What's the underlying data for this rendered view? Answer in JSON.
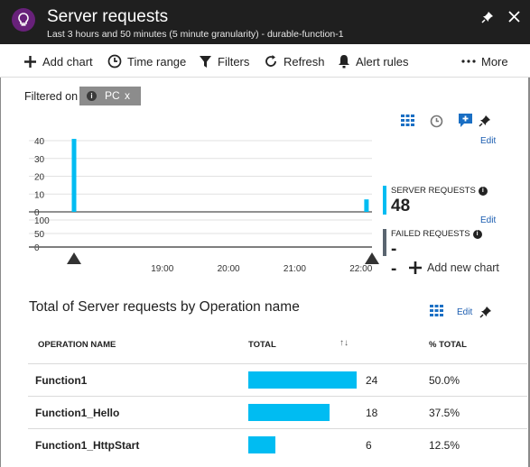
{
  "header": {
    "title": "Server requests",
    "subtitle": "Last 3 hours and 50 minutes (5 minute granularity) - durable-function-1"
  },
  "toolbar": {
    "add_chart": "Add chart",
    "time_range": "Time range",
    "filters": "Filters",
    "refresh": "Refresh",
    "alert_rules": "Alert rules",
    "more": "More"
  },
  "filter": {
    "label": "Filtered on",
    "value": "PC",
    "remove": "x"
  },
  "edit_label": "Edit",
  "add_new_chart": "Add new chart",
  "metrics": {
    "server_requests": {
      "label": "SERVER REQUESTS",
      "value": "48",
      "color": "#00bcf2"
    },
    "failed_requests": {
      "label": "FAILED REQUESTS",
      "value": "--",
      "color": "#5a6570"
    }
  },
  "chart_data": {
    "type": "bar",
    "x_ticks": [
      "19:00",
      "20:00",
      "21:00",
      "22:00"
    ],
    "panels": [
      {
        "name": "Server requests",
        "y_ticks": [
          "40",
          "30",
          "20",
          "10",
          "0"
        ],
        "ylim": [
          0,
          40
        ],
        "points": [
          {
            "x": "17:40",
            "y": 41
          },
          {
            "x": "22:05",
            "y": 7
          }
        ],
        "color": "#00bcf2"
      },
      {
        "name": "Failed requests",
        "y_ticks": [
          "100",
          "50",
          "0"
        ],
        "ylim": [
          0,
          100
        ],
        "points": [],
        "color": "#5a6570"
      }
    ]
  },
  "table": {
    "title": "Total of Server requests by Operation name",
    "columns": {
      "name": "OPERATION NAME",
      "total": "TOTAL",
      "pct": "% TOTAL"
    },
    "sort_icon": "↑↓",
    "rows": [
      {
        "name": "Function1",
        "total": "24",
        "pct": "50.0%",
        "fraction": 1.0
      },
      {
        "name": "Function1_Hello",
        "total": "18",
        "pct": "37.5%",
        "fraction": 0.75
      },
      {
        "name": "Function1_HttpStart",
        "total": "6",
        "pct": "12.5%",
        "fraction": 0.25
      }
    ],
    "bar_color": "#00bcf2"
  }
}
